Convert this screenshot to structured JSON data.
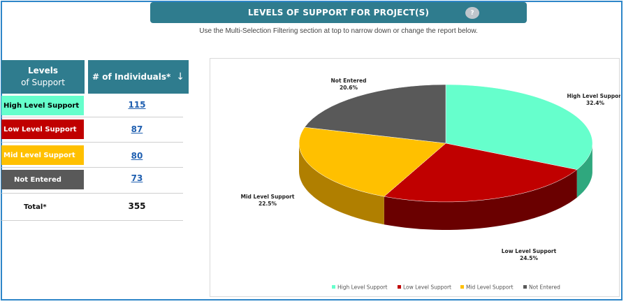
{
  "header": {
    "title": "LEVELS OF SUPPORT FOR PROJECT(S)",
    "help_label": "?",
    "subtitle": "Use the Multi-Selection Filtering section at top to narrow down or change the report below."
  },
  "table": {
    "col_level_line1": "Levels",
    "col_level_line2": "of Support",
    "col_count": "# of Individuals*",
    "sort_icon": "↓",
    "rows": [
      {
        "label": "High Level Support",
        "count": "115",
        "color": "#66ffcc",
        "text_color": "#000000"
      },
      {
        "label": "Low Level Support",
        "count": "87",
        "color": "#c00000",
        "text_color": "#ffffff"
      },
      {
        "label": "Mid Level Support",
        "count": "80",
        "color": "#ffc000",
        "text_color": "#ffffff"
      },
      {
        "label": "Not Entered",
        "count": "73",
        "color": "#595959",
        "text_color": "#ffffff"
      }
    ],
    "total_label": "Total*",
    "total_value": "355"
  },
  "chart_data": {
    "type": "pie",
    "categories": [
      "High Level Support",
      "Low Level Support",
      "Mid Level Support",
      "Not Entered"
    ],
    "values": [
      32.4,
      24.5,
      22.5,
      20.6
    ],
    "labels": [
      "32.4%",
      "24.5%",
      "22.5%",
      "20.6%"
    ],
    "colors": [
      "#66ffcc",
      "#c00000",
      "#ffc000",
      "#595959"
    ],
    "side_colors": [
      "#2fa87e",
      "#6a0000",
      "#b07f00",
      "#333333"
    ],
    "legend": "bottom",
    "three_d": true
  }
}
